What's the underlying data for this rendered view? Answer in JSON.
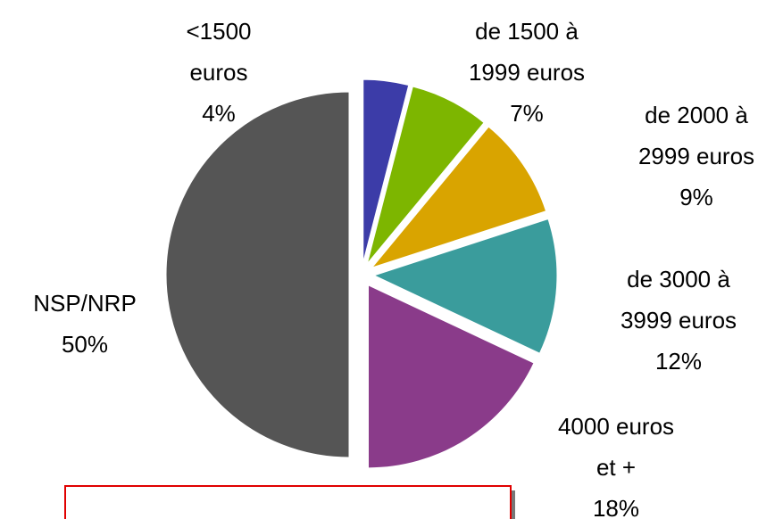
{
  "chart_data": {
    "type": "pie",
    "categories": [
      "<1500\neuros",
      "de 1500 à\n1999 euros",
      "de 2000 à\n2999 euros",
      "de 3000 à\n3999 euros",
      "4000 euros\net +",
      "NSP/NRP"
    ],
    "values": [
      4,
      7,
      9,
      12,
      18,
      50
    ],
    "value_labels": [
      "4%",
      "7%",
      "9%",
      "12%",
      "18%",
      "50%"
    ],
    "colors": [
      "#3c3ca8",
      "#7db600",
      "#d9a400",
      "#3a9c9c",
      "#8a3b8a",
      "#555555"
    ]
  }
}
